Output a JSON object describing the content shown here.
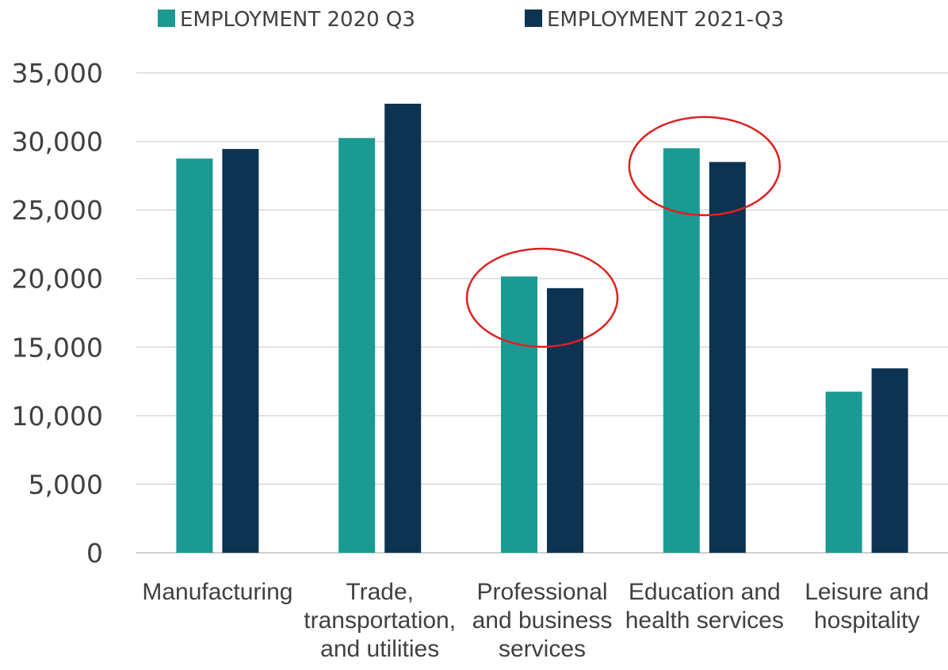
{
  "chart_data": {
    "type": "bar",
    "title": "",
    "xlabel": "",
    "ylabel": "",
    "ylim": [
      0,
      35000
    ],
    "y_ticks": [
      "0",
      "5,000",
      "10,000",
      "15,000",
      "20,000",
      "25,000",
      "30,000",
      "35,000"
    ],
    "grid": true,
    "legend_position": "top",
    "categories": [
      [
        "Manufacturing"
      ],
      [
        "Trade,",
        "transportation,",
        "and utilities"
      ],
      [
        "Professional",
        "and business",
        "services"
      ],
      [
        "Education and",
        "health services"
      ],
      [
        "Leisure and",
        "hospitality"
      ]
    ],
    "series": [
      {
        "name": "EMPLOYMENT  2020 Q3",
        "color": "#1a9a93",
        "values": [
          28750,
          30250,
          20150,
          29500,
          11750
        ]
      },
      {
        "name": "EMPLOYMENT  2021-Q3",
        "color": "#0c3352",
        "values": [
          29450,
          32750,
          19300,
          28500,
          13450
        ]
      }
    ],
    "annotations": [
      {
        "type": "ellipse",
        "color": "#e02020",
        "category": "Professional and business services",
        "center_value": 18600
      },
      {
        "type": "ellipse",
        "color": "#e02020",
        "category": "Education and health services",
        "center_value": 28200
      }
    ]
  }
}
